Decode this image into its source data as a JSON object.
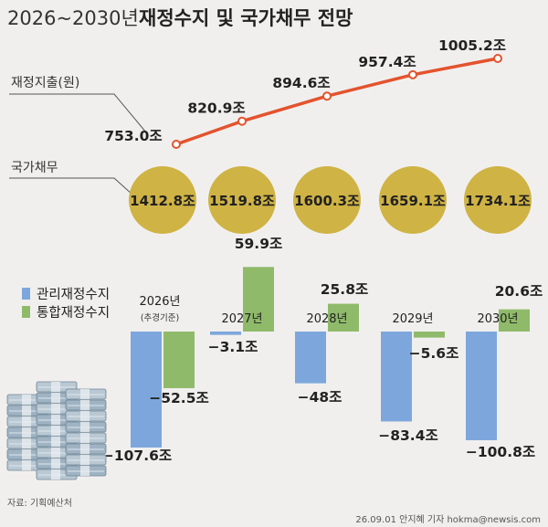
{
  "title": {
    "years": "2026~2030년",
    "main": "재정수지 및 국가채무 전망"
  },
  "labels": {
    "expenditure": "재정지출(원)",
    "debt": "국가채무"
  },
  "colors": {
    "line": "#e3532e",
    "debt_circle": "#cfb344",
    "managed": "#7da7dc",
    "integrated": "#8fba6a",
    "background": "#f1efee"
  },
  "chart_data": [
    {
      "type": "line",
      "title": "재정지출(원)",
      "x": [
        "2026년",
        "2027년",
        "2028년",
        "2029년",
        "2030년"
      ],
      "values": [
        753.0,
        820.9,
        894.6,
        957.4,
        1005.2
      ],
      "value_labels": [
        "753.0조",
        "820.9조",
        "894.6조",
        "957.4조",
        "1005.2조"
      ]
    },
    {
      "type": "table",
      "title": "국가채무",
      "x": [
        "2026년",
        "2027년",
        "2028년",
        "2029년",
        "2030년"
      ],
      "values": [
        1412.8,
        1519.8,
        1600.3,
        1659.1,
        1734.1
      ],
      "value_labels": [
        "1412.8조",
        "1519.8조",
        "1600.3조",
        "1659.1조",
        "1734.1조"
      ]
    },
    {
      "type": "bar",
      "categories": [
        "2026년",
        "2027년",
        "2028년",
        "2029년",
        "2030년"
      ],
      "category_notes": [
        "(추경기준)",
        "",
        "",
        "",
        ""
      ],
      "series": [
        {
          "name": "관리재정수지",
          "values": [
            -107.6,
            -3.1,
            -48,
            -83.4,
            -100.8
          ],
          "labels": [
            "−107.6조",
            "−3.1조",
            "−48조",
            "−83.4조",
            "−100.8조"
          ]
        },
        {
          "name": "통합재정수지",
          "values": [
            -52.5,
            59.9,
            25.8,
            -5.6,
            20.6
          ],
          "labels": [
            "−52.5조",
            "59.9조",
            "25.8조",
            "−5.6조",
            "20.6조"
          ]
        }
      ]
    }
  ],
  "footer": {
    "source": "자료: 기획예산처",
    "credit": "26.09.01 안지혜 기자 hokma@newsis.com"
  }
}
